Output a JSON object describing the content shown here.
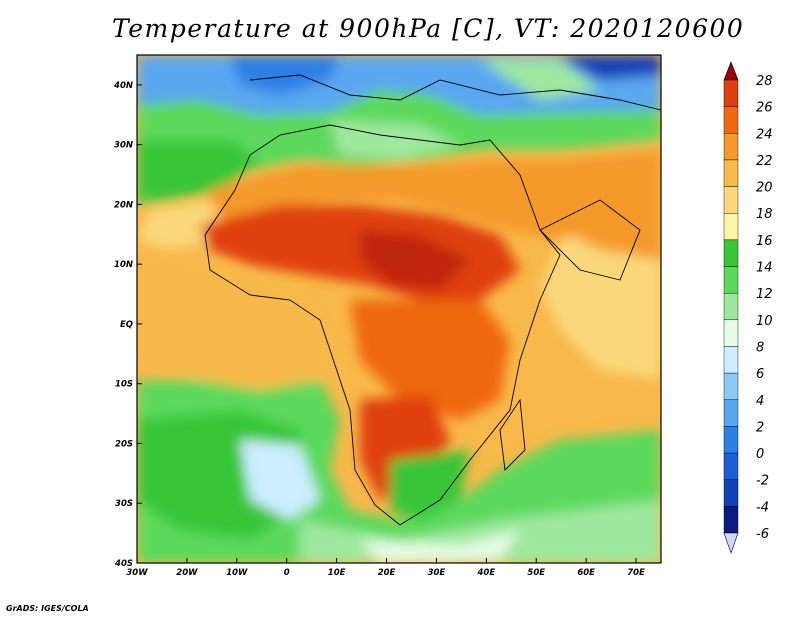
{
  "title": "Temperature at 900hPa [C], VT: 2020120600",
  "credit": "GrADS: IGES/COLA",
  "map": {
    "lon_range": [
      -30,
      75
    ],
    "lat_range": [
      -40,
      45
    ],
    "lon_ticks": [
      "30W",
      "20W",
      "10W",
      "0",
      "10E",
      "20E",
      "30E",
      "40E",
      "50E",
      "60E",
      "70E"
    ],
    "lon_tick_values": [
      -30,
      -20,
      -10,
      0,
      10,
      20,
      30,
      40,
      50,
      60,
      70
    ],
    "lat_ticks": [
      "40N",
      "30N",
      "20N",
      "10N",
      "EQ",
      "10S",
      "20S",
      "30S",
      "40S"
    ],
    "lat_tick_values": [
      40,
      30,
      20,
      10,
      0,
      -10,
      -20,
      -30,
      -40
    ]
  },
  "colorbar": {
    "levels": [
      "28",
      "26",
      "24",
      "22",
      "20",
      "18",
      "16",
      "14",
      "12",
      "10",
      "8",
      "6",
      "4",
      "2",
      "0",
      "-2",
      "-4",
      "-6"
    ],
    "colors": [
      "#9c0000",
      "#e0400e",
      "#f06810",
      "#f59a2a",
      "#f8b84a",
      "#fad87a",
      "#fdf4a8",
      "#37c637",
      "#5cd95c",
      "#9ee89e",
      "#e6fce6",
      "#cceeff",
      "#8ec9f5",
      "#5aa7f0",
      "#2e7fe5",
      "#1b5ed8",
      "#1440b8",
      "#0a1a80",
      "#d0d8ff"
    ]
  }
}
